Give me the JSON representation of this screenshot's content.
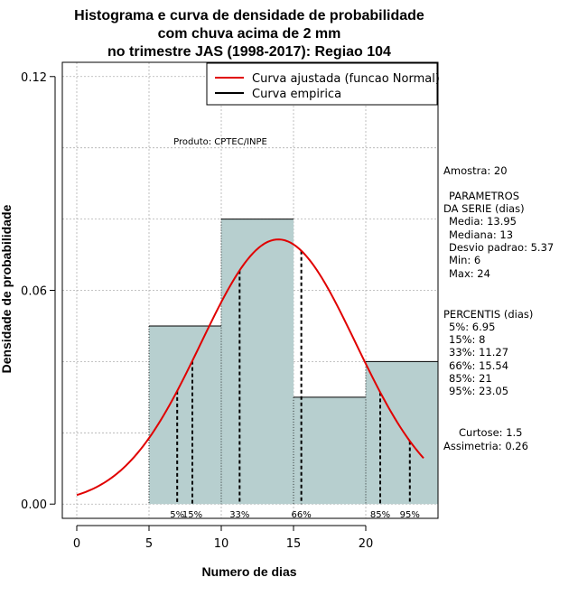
{
  "chart_data": {
    "type": "histogram",
    "title": [
      "Histograma e curva de densidade de probabilidade",
      "com chuva acima de 2 mm",
      "no trimestre JAS (1998-2017): Regiao 104"
    ],
    "xlabel": "Numero de dias",
    "ylabel": "Densidade de probabilidade",
    "xlim": [
      -1,
      25
    ],
    "ylim": [
      -0.004,
      0.124
    ],
    "x_ticks": [
      0,
      5,
      10,
      15,
      20
    ],
    "x_tick_labels": [
      "0",
      "5",
      "10",
      "15",
      "20"
    ],
    "y_ticks": [
      0.0,
      0.06,
      0.12
    ],
    "y_tick_labels": [
      "0.00",
      "0.06",
      "0.12"
    ],
    "grid": true,
    "bins": [
      {
        "start": 5,
        "end": 10,
        "density": 0.05
      },
      {
        "start": 10,
        "end": 15,
        "density": 0.08
      },
      {
        "start": 15,
        "end": 20,
        "density": 0.03
      },
      {
        "start": 20,
        "end": 25,
        "density": 0.04
      }
    ],
    "fitted_curve": {
      "name": "Curva ajustada (funcao Normal)",
      "color": "#e00000",
      "mean": 13.95,
      "sd": 5.37,
      "x_range": [
        0,
        24
      ]
    },
    "empirical_curve": {
      "name": "Curva empirica",
      "color": "#000000"
    },
    "legend": [
      "Curva ajustada (funcao Normal)",
      "Curva empirica"
    ],
    "legend_position": "top-right",
    "annotation": "Produto: CPTEC/INPE",
    "percentile_markers": [
      {
        "label": "5%",
        "x": 6.95
      },
      {
        "label": "15%",
        "x": 8
      },
      {
        "label": "33%",
        "x": 11.27
      },
      {
        "label": "66%",
        "x": 15.54
      },
      {
        "label": "85%",
        "x": 21
      },
      {
        "label": "95%",
        "x": 23.05
      }
    ]
  },
  "side_panel": {
    "amostra": "Amostra: 20",
    "parametros_title": "PARAMETROS",
    "parametros_subtitle": "DA SERIE (dias)",
    "parametros": [
      "Media: 13.95",
      "Mediana: 13",
      "Desvio padrao: 5.37",
      "Min: 6",
      "Max: 24"
    ],
    "percentis_title": "PERCENTIS (dias)",
    "percentis": [
      "5%: 6.95",
      "15%: 8",
      "33%: 11.27",
      "66%: 15.54",
      "85%: 21",
      "95%: 23.05"
    ],
    "curtose": "Curtose: 1.5",
    "assimetria": "Assimetria: 0.26"
  },
  "colors": {
    "bar_fill": "#b7cfcf",
    "fit_line": "#e00000",
    "grid": "#b0b0b0"
  }
}
